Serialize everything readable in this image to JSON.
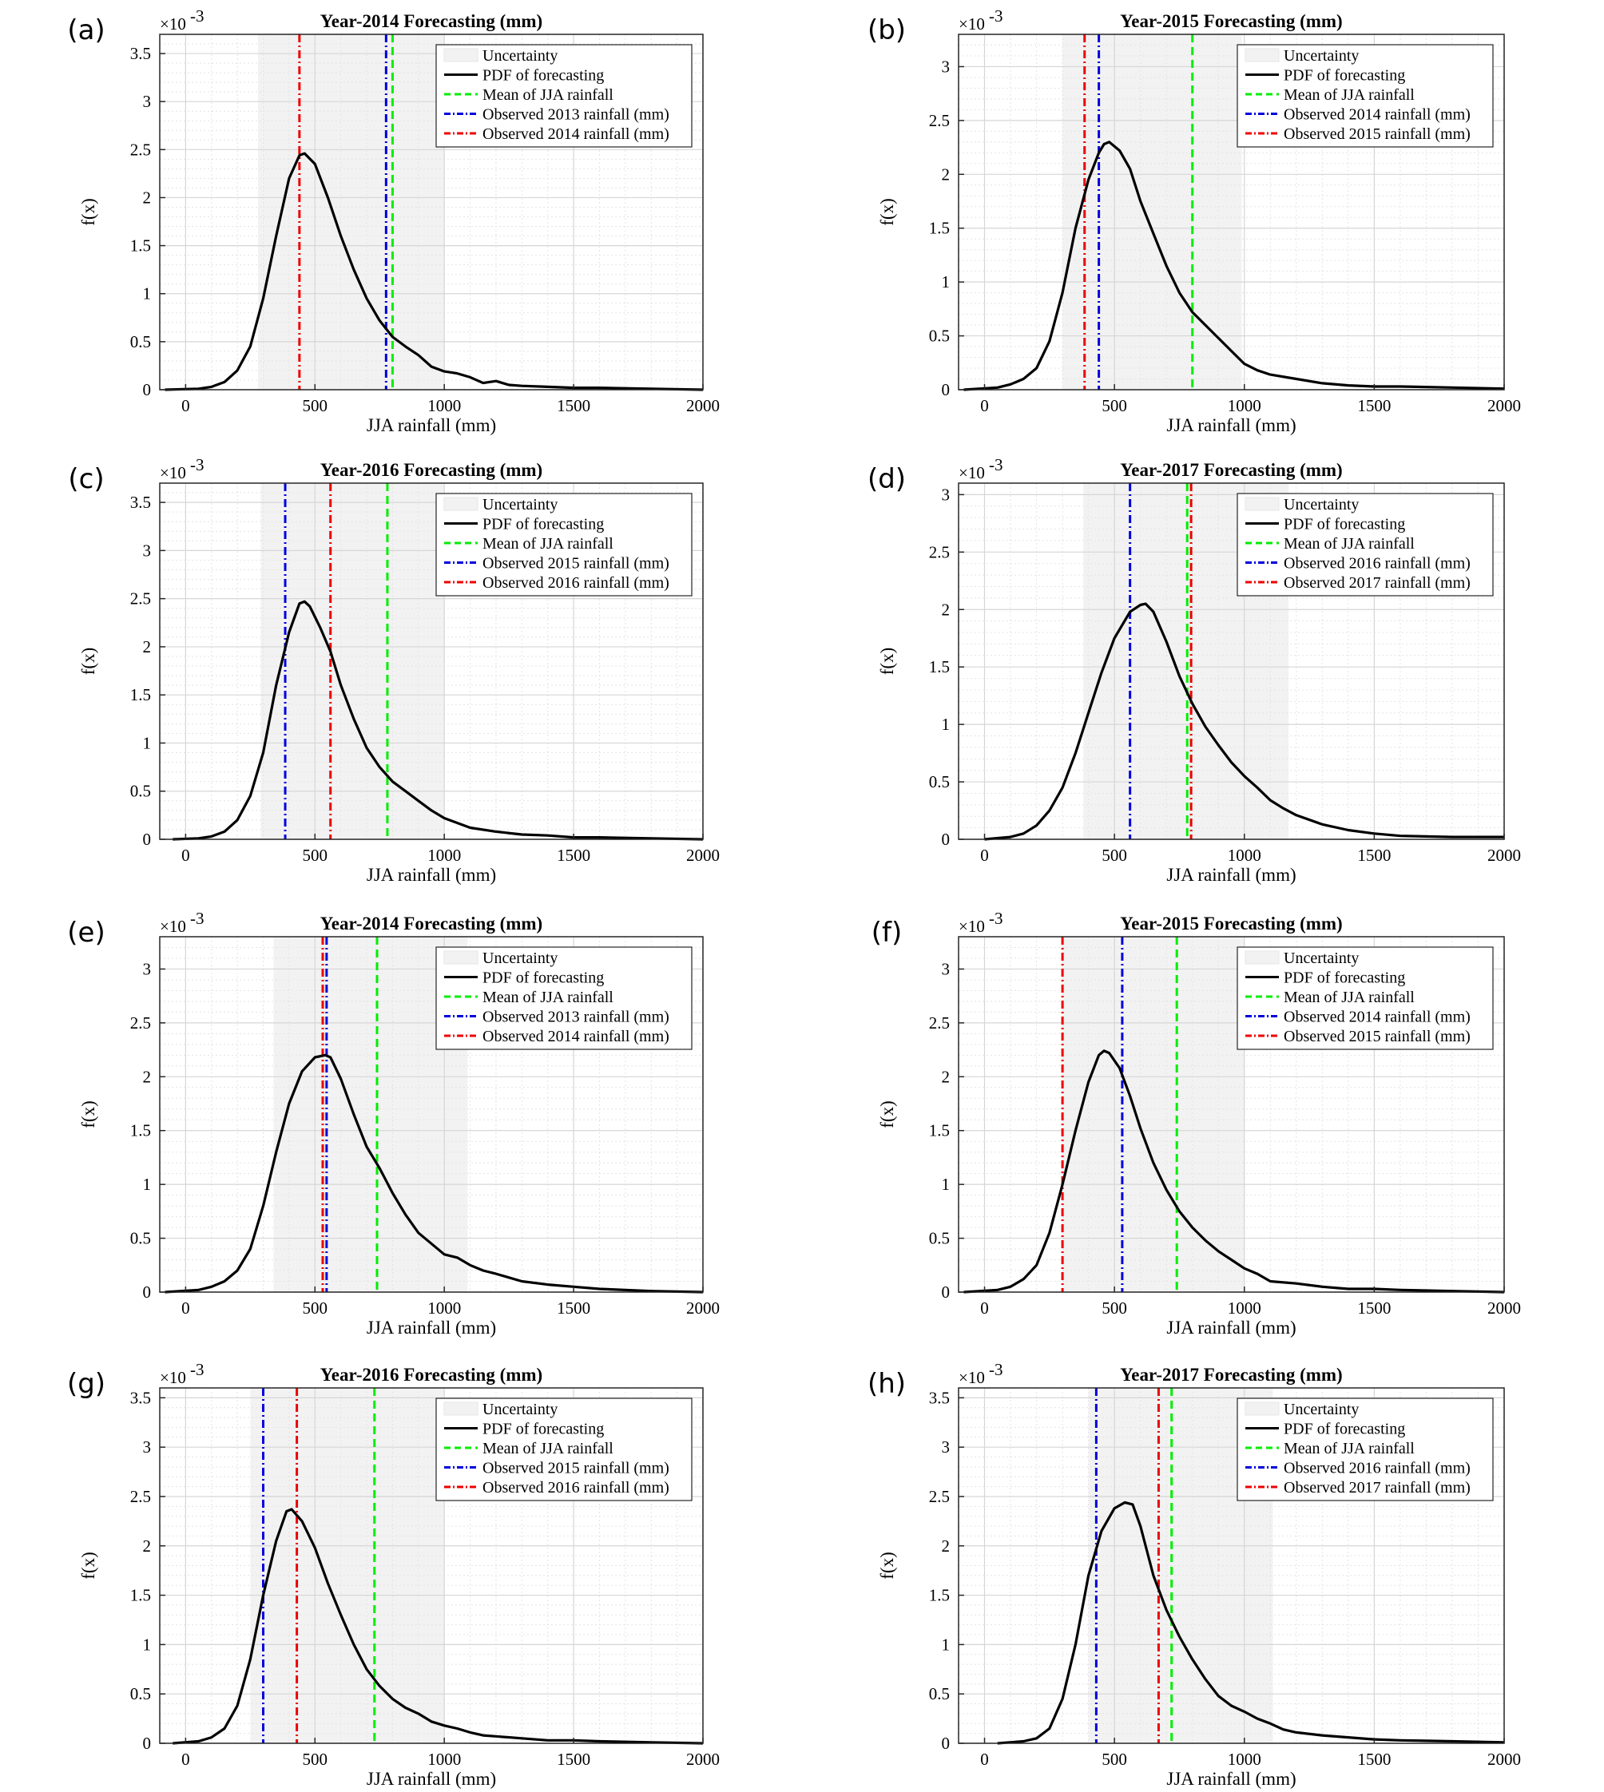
{
  "figure": {
    "xlabel": "JJA rainfall (mm)",
    "ylabel": "f(x)",
    "exponent": "×10",
    "exponent_power": "-3",
    "legend_entries": [
      "Uncertainty",
      "PDF of forecasting",
      "Mean of JJA rainfall",
      "Observed {prev} rainfall (mm)",
      "Observed {curr} rainfall (mm)"
    ],
    "colors": {
      "pdf": "#000000",
      "mean": "#00ee00",
      "observed_prev": "#0000dd",
      "observed_curr": "#ee0000",
      "uncertainty": "#f2f2f2",
      "grid": "#d6d6d6"
    },
    "xlim": [
      -100,
      2000
    ],
    "xticks": [
      0,
      500,
      1000,
      1500,
      2000
    ]
  },
  "chart_data": [
    {
      "label": "(a)",
      "title": "Year-2014 Forecasting (mm)",
      "type": "line",
      "ylim": [
        0,
        3.7
      ],
      "yticks": [
        0,
        0.5,
        1,
        1.5,
        2,
        2.5,
        3,
        3.5
      ],
      "legend": [
        "Uncertainty",
        "PDF of forecasting",
        "Mean of JJA rainfall",
        "Observed 2013 rainfall (mm)",
        "Observed 2014 rainfall (mm)"
      ],
      "uncertainty": [
        280,
        1000
      ],
      "mean": 800,
      "observed_prev": 775,
      "observed_curr": 440,
      "pdf": {
        "x": [
          -80,
          50,
          100,
          150,
          200,
          250,
          300,
          350,
          400,
          440,
          460,
          500,
          550,
          600,
          650,
          700,
          750,
          800,
          850,
          900,
          950,
          1000,
          1050,
          1100,
          1150,
          1200,
          1250,
          1300,
          1400,
          1500,
          1600,
          1800,
          2000
        ],
        "y": [
          0,
          0.01,
          0.03,
          0.08,
          0.2,
          0.45,
          0.95,
          1.6,
          2.2,
          2.44,
          2.46,
          2.35,
          2.0,
          1.6,
          1.25,
          0.95,
          0.72,
          0.55,
          0.45,
          0.36,
          0.24,
          0.19,
          0.17,
          0.13,
          0.07,
          0.09,
          0.05,
          0.04,
          0.03,
          0.02,
          0.02,
          0.01,
          0.0
        ]
      }
    },
    {
      "label": "(b)",
      "title": "Year-2015 Forecasting (mm)",
      "type": "line",
      "ylim": [
        0,
        3.3
      ],
      "yticks": [
        0,
        0.5,
        1,
        1.5,
        2,
        2.5,
        3
      ],
      "legend": [
        "Uncertainty",
        "PDF of forecasting",
        "Mean of JJA rainfall",
        "Observed 2014 rainfall (mm)",
        "Observed 2015 rainfall (mm)"
      ],
      "uncertainty": [
        300,
        990
      ],
      "mean": 800,
      "observed_prev": 440,
      "observed_curr": 385,
      "pdf": {
        "x": [
          -80,
          50,
          100,
          150,
          200,
          250,
          300,
          350,
          400,
          440,
          460,
          480,
          520,
          560,
          600,
          650,
          700,
          750,
          800,
          850,
          900,
          950,
          1000,
          1050,
          1100,
          1200,
          1300,
          1400,
          1500,
          1600,
          1800,
          2000
        ],
        "y": [
          0,
          0.02,
          0.05,
          0.1,
          0.2,
          0.45,
          0.9,
          1.5,
          1.95,
          2.2,
          2.28,
          2.3,
          2.22,
          2.05,
          1.75,
          1.45,
          1.15,
          0.9,
          0.72,
          0.6,
          0.48,
          0.36,
          0.24,
          0.18,
          0.14,
          0.1,
          0.06,
          0.04,
          0.03,
          0.03,
          0.02,
          0.01
        ]
      }
    },
    {
      "label": "(c)",
      "title": "Year-2016 Forecasting (mm)",
      "type": "line",
      "ylim": [
        0,
        3.7
      ],
      "yticks": [
        0,
        0.5,
        1,
        1.5,
        2,
        2.5,
        3,
        3.5
      ],
      "legend": [
        "Uncertainty",
        "PDF of forecasting",
        "Mean of JJA rainfall",
        "Observed 2015 rainfall (mm)",
        "Observed 2016 rainfall (mm)"
      ],
      "uncertainty": [
        290,
        1000
      ],
      "mean": 780,
      "observed_prev": 385,
      "observed_curr": 560,
      "pdf": {
        "x": [
          -50,
          50,
          100,
          150,
          200,
          250,
          300,
          350,
          400,
          440,
          460,
          480,
          520,
          560,
          600,
          650,
          700,
          750,
          800,
          850,
          900,
          950,
          1000,
          1050,
          1100,
          1200,
          1300,
          1400,
          1500,
          1600,
          1800,
          2000
        ],
        "y": [
          0,
          0.01,
          0.03,
          0.08,
          0.2,
          0.45,
          0.9,
          1.6,
          2.15,
          2.45,
          2.47,
          2.42,
          2.2,
          1.95,
          1.6,
          1.25,
          0.95,
          0.75,
          0.6,
          0.5,
          0.4,
          0.3,
          0.22,
          0.17,
          0.12,
          0.08,
          0.05,
          0.04,
          0.02,
          0.02,
          0.01,
          0.0
        ]
      }
    },
    {
      "label": "(d)",
      "title": "Year-2017 Forecasting (mm)",
      "type": "line",
      "ylim": [
        0,
        3.1
      ],
      "yticks": [
        0,
        0.5,
        1,
        1.5,
        2,
        2.5,
        3
      ],
      "legend": [
        "Uncertainty",
        "PDF of forecasting",
        "Mean of JJA rainfall",
        "Observed 2016 rainfall (mm)",
        "Observed 2017 rainfall (mm)"
      ],
      "uncertainty": [
        380,
        1170
      ],
      "mean": 780,
      "observed_prev": 560,
      "observed_curr": 795,
      "pdf": {
        "x": [
          0,
          100,
          150,
          200,
          250,
          300,
          350,
          400,
          450,
          500,
          560,
          600,
          620,
          650,
          700,
          750,
          800,
          850,
          900,
          950,
          1000,
          1050,
          1100,
          1150,
          1200,
          1300,
          1400,
          1500,
          1600,
          1800,
          2000
        ],
        "y": [
          0,
          0.02,
          0.05,
          0.12,
          0.25,
          0.45,
          0.75,
          1.1,
          1.45,
          1.75,
          1.98,
          2.04,
          2.05,
          1.98,
          1.72,
          1.42,
          1.18,
          0.98,
          0.82,
          0.67,
          0.55,
          0.45,
          0.34,
          0.27,
          0.21,
          0.13,
          0.08,
          0.05,
          0.03,
          0.02,
          0.02
        ]
      }
    },
    {
      "label": "(e)",
      "title": "Year-2014 Forecasting (mm)",
      "type": "line",
      "ylim": [
        0,
        3.3
      ],
      "yticks": [
        0,
        0.5,
        1,
        1.5,
        2,
        2.5,
        3
      ],
      "legend": [
        "Uncertainty",
        "PDF of forecasting",
        "Mean of JJA rainfall",
        "Observed 2013 rainfall (mm)",
        "Observed 2014 rainfall (mm)"
      ],
      "uncertainty": [
        340,
        1090
      ],
      "mean": 740,
      "observed_prev": 545,
      "observed_curr": 530,
      "pdf": {
        "x": [
          -80,
          50,
          100,
          150,
          200,
          250,
          300,
          350,
          400,
          450,
          500,
          540,
          560,
          600,
          650,
          700,
          750,
          800,
          850,
          900,
          950,
          1000,
          1050,
          1100,
          1150,
          1200,
          1300,
          1400,
          1500,
          1600,
          1800,
          2000
        ],
        "y": [
          0,
          0.02,
          0.05,
          0.1,
          0.2,
          0.4,
          0.8,
          1.3,
          1.75,
          2.05,
          2.18,
          2.2,
          2.18,
          1.98,
          1.65,
          1.35,
          1.15,
          0.92,
          0.72,
          0.55,
          0.45,
          0.35,
          0.32,
          0.25,
          0.2,
          0.17,
          0.1,
          0.07,
          0.05,
          0.03,
          0.01,
          0.0
        ]
      }
    },
    {
      "label": "(f)",
      "title": "Year-2015 Forecasting (mm)",
      "type": "line",
      "ylim": [
        0,
        3.3
      ],
      "yticks": [
        0,
        0.5,
        1,
        1.5,
        2,
        2.5,
        3
      ],
      "legend": [
        "Uncertainty",
        "PDF of forecasting",
        "Mean of JJA rainfall",
        "Observed 2014 rainfall (mm)",
        "Observed 2015 rainfall (mm)"
      ],
      "uncertainty": [
        300,
        1000
      ],
      "mean": 740,
      "observed_prev": 530,
      "observed_curr": 300,
      "pdf": {
        "x": [
          -80,
          50,
          100,
          150,
          200,
          250,
          300,
          350,
          400,
          440,
          460,
          480,
          520,
          560,
          600,
          650,
          700,
          750,
          800,
          850,
          900,
          950,
          1000,
          1050,
          1100,
          1200,
          1300,
          1400,
          1500,
          1600,
          1800,
          2000
        ],
        "y": [
          0,
          0.02,
          0.05,
          0.12,
          0.25,
          0.55,
          1.0,
          1.5,
          1.95,
          2.2,
          2.24,
          2.22,
          2.08,
          1.82,
          1.52,
          1.2,
          0.95,
          0.75,
          0.6,
          0.48,
          0.38,
          0.3,
          0.22,
          0.17,
          0.1,
          0.08,
          0.05,
          0.03,
          0.03,
          0.02,
          0.01,
          0.0
        ]
      }
    },
    {
      "label": "(g)",
      "title": "Year-2016 Forecasting (mm)",
      "type": "line",
      "ylim": [
        0,
        3.6
      ],
      "yticks": [
        0,
        0.5,
        1,
        1.5,
        2,
        2.5,
        3,
        3.5
      ],
      "legend": [
        "Uncertainty",
        "PDF of forecasting",
        "Mean of JJA rainfall",
        "Observed 2015 rainfall (mm)",
        "Observed 2016 rainfall (mm)"
      ],
      "uncertainty": [
        250,
        1000
      ],
      "mean": 730,
      "observed_prev": 300,
      "observed_curr": 430,
      "pdf": {
        "x": [
          -50,
          50,
          100,
          150,
          200,
          250,
          300,
          350,
          390,
          410,
          450,
          500,
          550,
          600,
          650,
          700,
          750,
          800,
          850,
          900,
          950,
          1000,
          1050,
          1100,
          1150,
          1200,
          1300,
          1400,
          1500,
          1600,
          1800,
          2000
        ],
        "y": [
          0,
          0.02,
          0.06,
          0.15,
          0.38,
          0.85,
          1.5,
          2.05,
          2.35,
          2.37,
          2.25,
          1.98,
          1.62,
          1.3,
          1.0,
          0.75,
          0.58,
          0.45,
          0.36,
          0.3,
          0.22,
          0.18,
          0.15,
          0.11,
          0.08,
          0.07,
          0.05,
          0.03,
          0.03,
          0.02,
          0.01,
          0.0
        ]
      }
    },
    {
      "label": "(h)",
      "title": "Year-2017 Forecasting (mm)",
      "type": "line",
      "ylim": [
        0,
        3.6
      ],
      "yticks": [
        0,
        0.5,
        1,
        1.5,
        2,
        2.5,
        3,
        3.5
      ],
      "legend": [
        "Uncertainty",
        "PDF of forecasting",
        "Mean of JJA rainfall",
        "Observed 2016 rainfall (mm)",
        "Observed 2017 rainfall (mm)"
      ],
      "uncertainty": [
        400,
        1110
      ],
      "mean": 720,
      "observed_prev": 430,
      "observed_curr": 670,
      "pdf": {
        "x": [
          50,
          150,
          200,
          250,
          300,
          350,
          400,
          450,
          500,
          540,
          570,
          600,
          650,
          700,
          750,
          800,
          850,
          900,
          950,
          1000,
          1050,
          1100,
          1150,
          1200,
          1300,
          1400,
          1500,
          1600,
          1800,
          2000
        ],
        "y": [
          0,
          0.02,
          0.05,
          0.15,
          0.45,
          1.0,
          1.7,
          2.15,
          2.38,
          2.44,
          2.42,
          2.2,
          1.7,
          1.35,
          1.08,
          0.85,
          0.65,
          0.48,
          0.38,
          0.32,
          0.25,
          0.2,
          0.14,
          0.11,
          0.08,
          0.06,
          0.04,
          0.03,
          0.02,
          0.01
        ]
      }
    }
  ]
}
